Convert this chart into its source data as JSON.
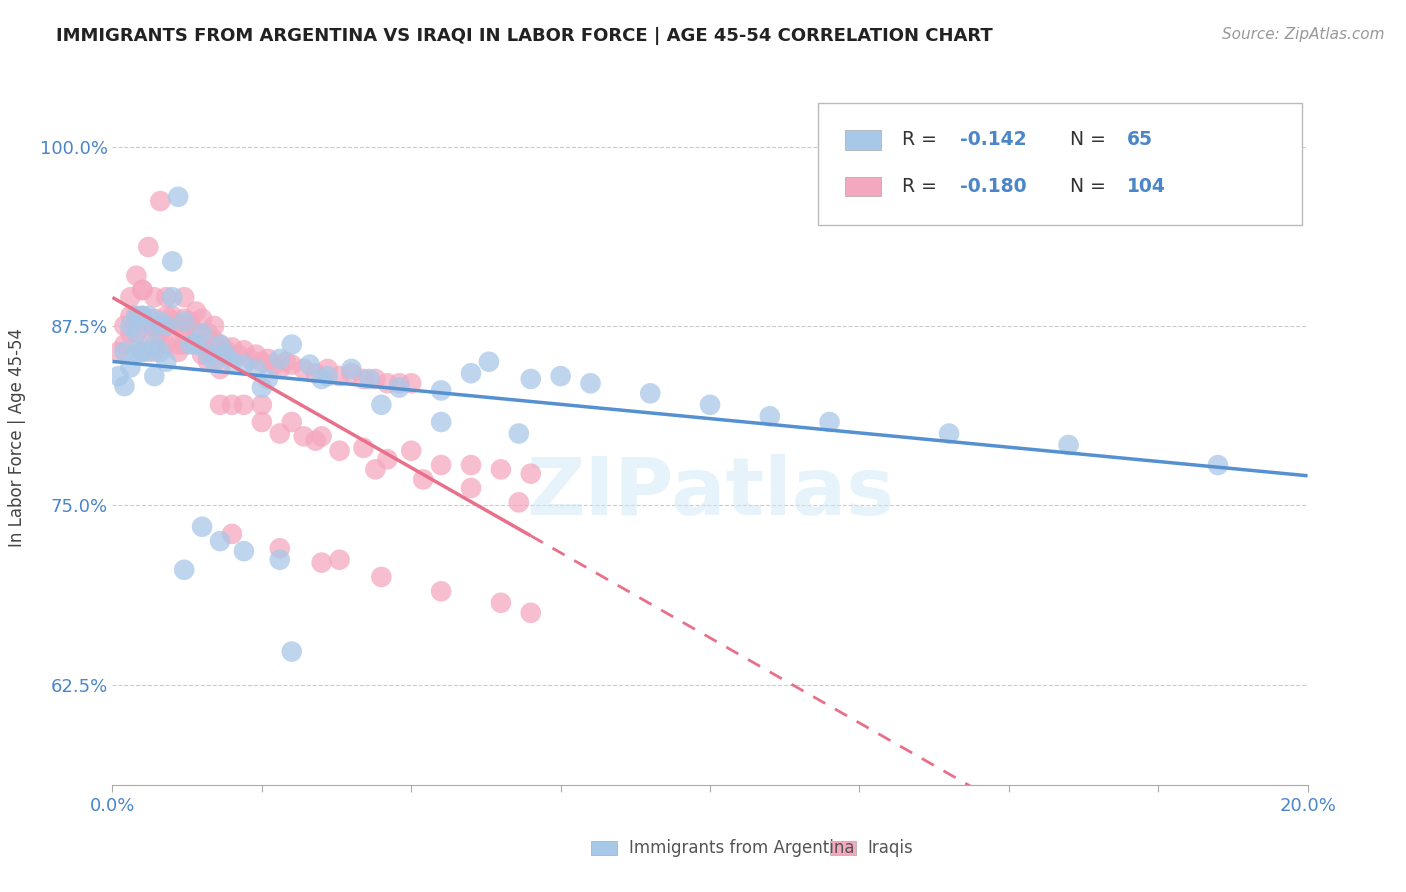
{
  "title": "IMMIGRANTS FROM ARGENTINA VS IRAQI IN LABOR FORCE | AGE 45-54 CORRELATION CHART",
  "source": "Source: ZipAtlas.com",
  "ylabel": "In Labor Force | Age 45-54",
  "xlim": [
    0.0,
    0.2
  ],
  "ylim": [
    0.555,
    1.04
  ],
  "yticks": [
    0.625,
    0.75,
    0.875,
    1.0
  ],
  "ytick_labels": [
    "62.5%",
    "75.0%",
    "87.5%",
    "100.0%"
  ],
  "xticks": [
    0.0,
    0.025,
    0.05,
    0.075,
    0.1,
    0.125,
    0.15,
    0.175,
    0.2
  ],
  "xtick_labels": [
    "0.0%",
    "",
    "",
    "",
    "",
    "",
    "",
    "",
    "20.0%"
  ],
  "argentina_R": -0.142,
  "argentina_N": 65,
  "iraqi_R": -0.18,
  "iraqi_N": 104,
  "argentina_color": "#a8c8e8",
  "iraqi_color": "#f4a8be",
  "argentina_line_color": "#5590d0",
  "iraqi_line_color": "#e8708a",
  "legend_label_argentina": "Immigrants from Argentina",
  "legend_label_iraqi": "Iraqis",
  "watermark": "ZIPatlas",
  "argentina_x": [
    0.001,
    0.002,
    0.002,
    0.003,
    0.003,
    0.004,
    0.004,
    0.004,
    0.005,
    0.005,
    0.006,
    0.006,
    0.007,
    0.007,
    0.007,
    0.008,
    0.008,
    0.009,
    0.009,
    0.01,
    0.01,
    0.011,
    0.012,
    0.013,
    0.014,
    0.015,
    0.016,
    0.017,
    0.018,
    0.019,
    0.02,
    0.022,
    0.024,
    0.026,
    0.028,
    0.03,
    0.033,
    0.036,
    0.04,
    0.043,
    0.048,
    0.055,
    0.06,
    0.063,
    0.07,
    0.075,
    0.08,
    0.09,
    0.1,
    0.11,
    0.12,
    0.14,
    0.16,
    0.185,
    0.025,
    0.035,
    0.028,
    0.022,
    0.018,
    0.015,
    0.012,
    0.03,
    0.045,
    0.055,
    0.068
  ],
  "argentina_y": [
    0.84,
    0.857,
    0.833,
    0.875,
    0.846,
    0.882,
    0.87,
    0.857,
    0.882,
    0.857,
    0.882,
    0.857,
    0.875,
    0.862,
    0.84,
    0.878,
    0.857,
    0.875,
    0.85,
    0.92,
    0.895,
    0.965,
    0.878,
    0.862,
    0.862,
    0.87,
    0.855,
    0.85,
    0.862,
    0.855,
    0.85,
    0.848,
    0.845,
    0.838,
    0.852,
    0.862,
    0.848,
    0.84,
    0.845,
    0.838,
    0.832,
    0.83,
    0.842,
    0.85,
    0.838,
    0.84,
    0.835,
    0.828,
    0.82,
    0.812,
    0.808,
    0.8,
    0.792,
    0.778,
    0.832,
    0.838,
    0.712,
    0.718,
    0.725,
    0.735,
    0.705,
    0.648,
    0.82,
    0.808,
    0.8
  ],
  "iraqi_x": [
    0.001,
    0.002,
    0.002,
    0.003,
    0.003,
    0.004,
    0.004,
    0.005,
    0.005,
    0.006,
    0.006,
    0.007,
    0.007,
    0.007,
    0.008,
    0.008,
    0.009,
    0.009,
    0.01,
    0.01,
    0.011,
    0.011,
    0.012,
    0.012,
    0.013,
    0.014,
    0.015,
    0.015,
    0.016,
    0.016,
    0.017,
    0.018,
    0.019,
    0.02,
    0.021,
    0.022,
    0.023,
    0.024,
    0.025,
    0.026,
    0.027,
    0.028,
    0.029,
    0.03,
    0.032,
    0.034,
    0.036,
    0.038,
    0.04,
    0.042,
    0.044,
    0.046,
    0.048,
    0.05,
    0.003,
    0.004,
    0.005,
    0.006,
    0.007,
    0.008,
    0.009,
    0.01,
    0.011,
    0.012,
    0.013,
    0.014,
    0.015,
    0.016,
    0.017,
    0.018,
    0.019,
    0.02,
    0.022,
    0.025,
    0.028,
    0.03,
    0.032,
    0.035,
    0.038,
    0.042,
    0.046,
    0.05,
    0.055,
    0.06,
    0.065,
    0.07,
    0.005,
    0.008,
    0.012,
    0.018,
    0.025,
    0.034,
    0.044,
    0.052,
    0.06,
    0.068,
    0.02,
    0.028,
    0.035,
    0.045,
    0.055,
    0.065,
    0.07,
    0.038
  ],
  "iraqi_y": [
    0.857,
    0.875,
    0.862,
    0.882,
    0.87,
    0.882,
    0.87,
    0.882,
    0.857,
    0.875,
    0.862,
    0.88,
    0.875,
    0.857,
    0.875,
    0.862,
    0.882,
    0.862,
    0.882,
    0.875,
    0.875,
    0.857,
    0.88,
    0.862,
    0.875,
    0.87,
    0.88,
    0.862,
    0.87,
    0.857,
    0.865,
    0.862,
    0.858,
    0.86,
    0.855,
    0.858,
    0.852,
    0.855,
    0.85,
    0.852,
    0.848,
    0.845,
    0.85,
    0.848,
    0.845,
    0.842,
    0.845,
    0.84,
    0.842,
    0.838,
    0.838,
    0.835,
    0.835,
    0.835,
    0.895,
    0.91,
    0.9,
    0.93,
    0.895,
    0.962,
    0.895,
    0.878,
    0.862,
    0.895,
    0.878,
    0.885,
    0.855,
    0.85,
    0.875,
    0.82,
    0.855,
    0.82,
    0.82,
    0.808,
    0.8,
    0.808,
    0.798,
    0.798,
    0.788,
    0.79,
    0.782,
    0.788,
    0.778,
    0.778,
    0.775,
    0.772,
    0.9,
    0.87,
    0.87,
    0.845,
    0.82,
    0.795,
    0.775,
    0.768,
    0.762,
    0.752,
    0.73,
    0.72,
    0.71,
    0.7,
    0.69,
    0.682,
    0.675,
    0.712
  ]
}
